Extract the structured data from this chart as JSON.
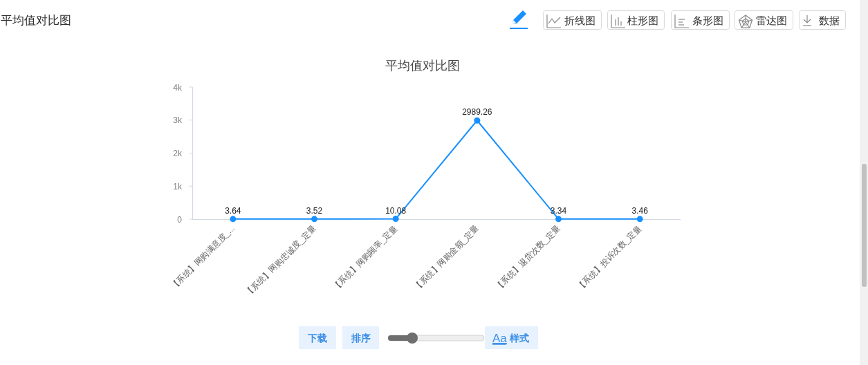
{
  "chart_data": {
    "type": "line",
    "title": "平均值对比图",
    "categories": [
      "【系统】网购满意度_...",
      "【系统】网购忠诚度_定量",
      "【系统】网购频率_定量",
      "【系统】网购金额_定量",
      "【系统】退货次数_定量",
      "【系统】投诉次数_定量"
    ],
    "values": [
      3.64,
      3.52,
      10.08,
      2989.26,
      3.34,
      3.46
    ],
    "color": "#1890ff",
    "ylim": [
      0,
      4000
    ],
    "yticks": [
      0,
      {
        "value": 1000,
        "label": "1k"
      },
      {
        "value": 2000,
        "label": "2k"
      },
      {
        "value": 3000,
        "label": "3k"
      },
      {
        "value": 4000,
        "label": "4k"
      }
    ],
    "data_labels": true,
    "marker": "circle",
    "line_style": "solid",
    "annotations": [
      "平均值对比图",
      "折线图",
      "柱形图",
      "条形图",
      "雷达图",
      "数据",
      "下载",
      "排序",
      "Aa 样式"
    ]
  }
}
